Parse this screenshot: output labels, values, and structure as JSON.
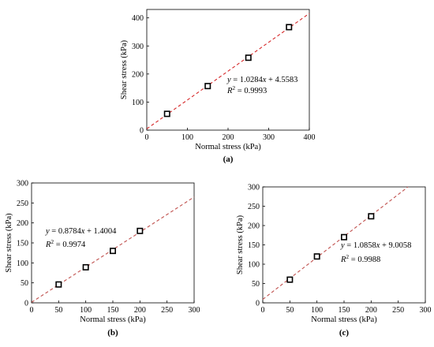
{
  "chart_data": [
    {
      "type": "scatter",
      "panel_label": "(a)",
      "xlabel": "Normal stress (kPa)",
      "ylabel": "Shear stress (kPa)",
      "xlim": [
        0,
        400
      ],
      "ylim": [
        0,
        430
      ],
      "xticks": [
        "0",
        "100",
        "200",
        "300",
        "400"
      ],
      "yticks": [
        "0",
        "100",
        "200",
        "300",
        "400"
      ],
      "points": [
        {
          "x": 50,
          "y": 58
        },
        {
          "x": 150,
          "y": 157
        },
        {
          "x": 250,
          "y": 258
        },
        {
          "x": 350,
          "y": 367
        }
      ],
      "fit": {
        "slope": 1.0284,
        "intercept": 4.5583,
        "color": "#d62728"
      },
      "equation": {
        "y_part": "y",
        "rest": " = 1.0284",
        "x_part": "x",
        "tail": " + 4.5583"
      },
      "r2": {
        "r": "R",
        "sup": "2",
        "value": " = 0.9993"
      },
      "grid": false,
      "legend": "none"
    },
    {
      "type": "scatter",
      "panel_label": "(b)",
      "xlabel": "Normal stress (kPa)",
      "ylabel": "Shear stress (kPa)",
      "xlim": [
        0,
        300
      ],
      "ylim": [
        0,
        300
      ],
      "xticks": [
        "0",
        "50",
        "100",
        "150",
        "200",
        "250",
        "300"
      ],
      "yticks": [
        "0",
        "50",
        "100",
        "150",
        "200",
        "250",
        "300"
      ],
      "points": [
        {
          "x": 50,
          "y": 46
        },
        {
          "x": 100,
          "y": 89
        },
        {
          "x": 150,
          "y": 130
        },
        {
          "x": 200,
          "y": 180
        }
      ],
      "fit": {
        "slope": 0.8784,
        "intercept": 1.4004,
        "color": "#c0504d"
      },
      "equation": {
        "y_part": "y",
        "rest": " = 0.8784",
        "x_part": "x",
        "tail": " + 1.4004"
      },
      "r2": {
        "r": "R",
        "sup": "2",
        "value": " = 0.9974"
      },
      "grid": false,
      "legend": "none"
    },
    {
      "type": "scatter",
      "panel_label": "(c)",
      "xlabel": "Normal stress (kPa)",
      "ylabel": "Shear stress (kPa)",
      "xlim": [
        0,
        300
      ],
      "ylim": [
        0,
        300
      ],
      "xticks": [
        "0",
        "50",
        "100",
        "150",
        "200",
        "250",
        "300"
      ],
      "yticks": [
        "0",
        "50",
        "100",
        "150",
        "200",
        "250",
        "300"
      ],
      "points": [
        {
          "x": 50,
          "y": 60
        },
        {
          "x": 100,
          "y": 120
        },
        {
          "x": 150,
          "y": 170
        },
        {
          "x": 200,
          "y": 224
        }
      ],
      "fit": {
        "slope": 1.0858,
        "intercept": 9.0058,
        "color": "#c0504d"
      },
      "equation": {
        "y_part": "y",
        "rest": " = 1.0858",
        "x_part": "x",
        "tail": " + 9.0058"
      },
      "r2": {
        "r": "R",
        "sup": "2",
        "value": " = 0.9988"
      },
      "grid": false,
      "legend": "none"
    }
  ]
}
